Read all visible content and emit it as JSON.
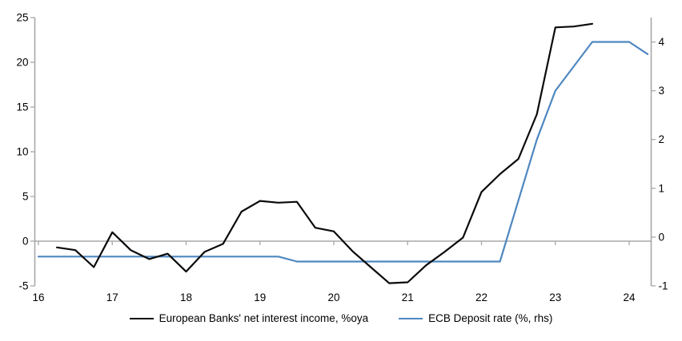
{
  "chart_data": {
    "type": "line",
    "legend_position": "bottom",
    "grid": false,
    "zero_line_left_axis": true,
    "x_axis": {
      "tick_positions": [
        16,
        17,
        18,
        19,
        20,
        21,
        22,
        23,
        24
      ],
      "tick_labels": [
        "16",
        "17",
        "18",
        "19",
        "20",
        "21",
        "22",
        "23",
        "24"
      ],
      "range": [
        15.95,
        24.35
      ]
    },
    "y_axis_left": {
      "ticks": [
        25,
        20,
        15,
        10,
        5,
        0,
        -5
      ],
      "range": [
        -5,
        25
      ]
    },
    "y_axis_right": {
      "ticks": [
        4,
        3,
        2,
        1,
        0,
        -1
      ],
      "range": [
        -1,
        4.5
      ]
    },
    "series": [
      {
        "name": "ECB Deposit rate (%, rhs)",
        "axis": "right",
        "color": "#4e87c0",
        "x": [
          16.0,
          16.25,
          16.5,
          16.75,
          17.0,
          17.25,
          17.5,
          17.75,
          18.0,
          18.25,
          18.5,
          18.75,
          19.0,
          19.25,
          19.5,
          19.75,
          20.0,
          20.25,
          20.5,
          20.75,
          21.0,
          21.25,
          21.5,
          21.75,
          22.0,
          22.25,
          22.5,
          22.75,
          23.0,
          23.25,
          23.5,
          23.75,
          24.0,
          24.25
        ],
        "values": [
          -0.4,
          -0.4,
          -0.4,
          -0.4,
          -0.4,
          -0.4,
          -0.4,
          -0.4,
          -0.4,
          -0.4,
          -0.4,
          -0.4,
          -0.4,
          -0.4,
          -0.5,
          -0.5,
          -0.5,
          -0.5,
          -0.5,
          -0.5,
          -0.5,
          -0.5,
          -0.5,
          -0.5,
          -0.5,
          -0.5,
          0.75,
          2.0,
          3.0,
          3.5,
          4.0,
          4.0,
          4.0,
          3.75
        ]
      },
      {
        "name": "European Banks' net interest income, %oya",
        "axis": "left",
        "color": "#0a0a0a",
        "x": [
          16.25,
          16.5,
          16.75,
          17.0,
          17.25,
          17.5,
          17.75,
          18.0,
          18.25,
          18.5,
          18.75,
          19.0,
          19.25,
          19.5,
          19.75,
          20.0,
          20.25,
          20.5,
          20.75,
          21.0,
          21.25,
          21.5,
          21.75,
          22.0,
          22.25,
          22.5,
          22.75,
          23.0,
          23.25,
          23.5
        ],
        "values": [
          -0.7,
          -1.0,
          -2.9,
          1.0,
          -1.0,
          -2.0,
          -1.4,
          -3.4,
          -1.2,
          -0.3,
          3.3,
          4.5,
          4.3,
          4.4,
          1.5,
          1.1,
          -1.1,
          -2.9,
          -4.7,
          -4.6,
          -2.7,
          -1.2,
          0.4,
          5.5,
          7.5,
          9.2,
          14.2,
          23.9,
          24.0,
          24.3
        ]
      }
    ]
  },
  "legend": {
    "item_nii_label": "European Banks' net interest income, %oya",
    "item_ecb_label": "ECB Deposit rate (%, rhs)"
  },
  "colors": {
    "axis": "#a8a8a8",
    "zero_line": "#a8a8a8",
    "tick_text": "#000000",
    "background": "#ffffff",
    "nii_line": "#0a0a0a",
    "ecb_line": "#4e87c0"
  }
}
